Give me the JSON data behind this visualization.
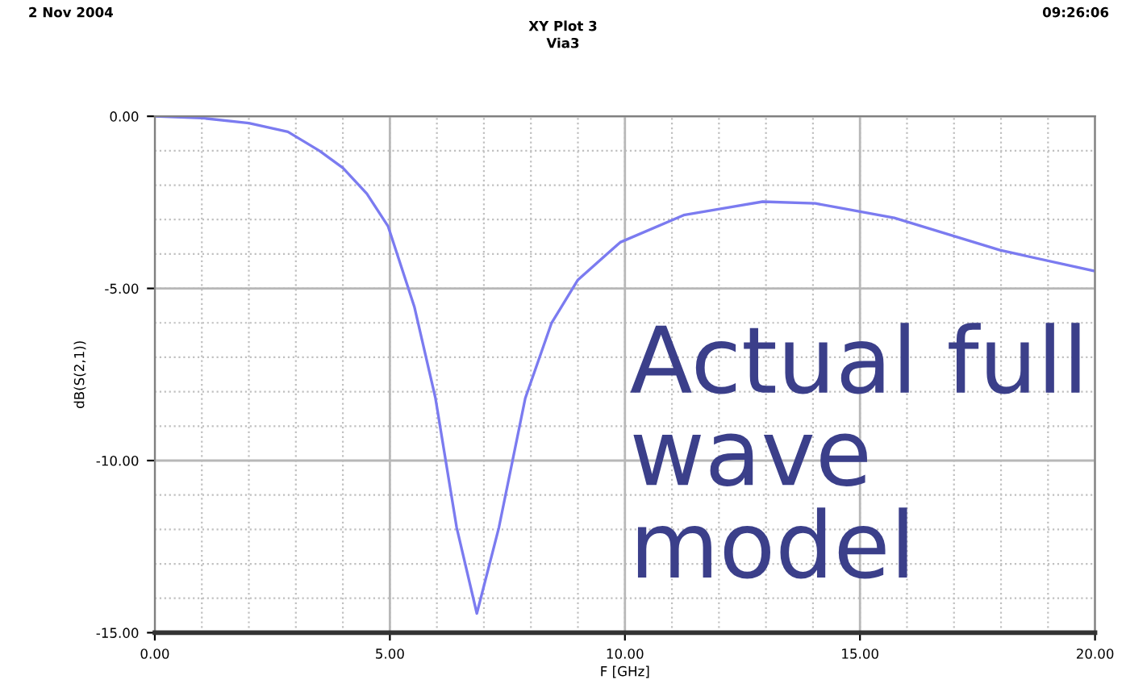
{
  "chart_data": {
    "type": "line",
    "title": "XY Plot 3",
    "subtitle": "Via3",
    "xlabel": "F [GHz]",
    "ylabel": "dB(S(2,1))",
    "annotations": [
      "2 Nov 2004",
      "09:26:06",
      "Actual full wave model"
    ],
    "series": [
      {
        "color": "#7b7bf0",
        "x": [
          0,
          1,
          2,
          2.83,
          3.5,
          4,
          4.51,
          4.96,
          5.52,
          5.97,
          6.42,
          6.85,
          7.32,
          7.88,
          8.44,
          9.0,
          9.9,
          11.25,
          12.93,
          14.05,
          15.73,
          17.98,
          20
        ],
        "values": [
          0,
          -0.05,
          -0.2,
          -0.45,
          -1.0,
          -1.5,
          -2.25,
          -3.19,
          -5.53,
          -8.19,
          -11.94,
          -14.44,
          -11.94,
          -8.19,
          -6.0,
          -4.75,
          -3.66,
          -2.87,
          -2.48,
          -2.53,
          -2.95,
          -3.89,
          -4.5
        ]
      }
    ],
    "xlim": [
      0,
      20
    ],
    "ylim": [
      -15,
      0
    ],
    "xticks": [
      {
        "value": 0,
        "label": "0.00"
      },
      {
        "value": 5,
        "label": "5.00"
      },
      {
        "value": 10,
        "label": "10.00"
      },
      {
        "value": 15,
        "label": "15.00"
      },
      {
        "value": 20,
        "label": "20.00"
      }
    ],
    "yticks": [
      {
        "value": 0,
        "label": "0.00"
      },
      {
        "value": -5,
        "label": "-5.00"
      },
      {
        "value": -10,
        "label": "-10.00"
      },
      {
        "value": -15,
        "label": "-15.00"
      }
    ],
    "grid": true,
    "marker": "none",
    "line_style": "solid"
  }
}
